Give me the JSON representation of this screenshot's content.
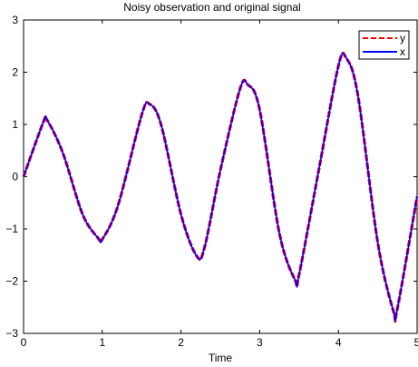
{
  "chart_data": {
    "type": "line",
    "title": "Noisy observation and original signal",
    "xlabel": "Time",
    "ylabel": "",
    "xlim": [
      0,
      5
    ],
    "ylim": [
      -3,
      3
    ],
    "xticks": [
      0,
      1,
      2,
      3,
      4,
      5
    ],
    "yticks": [
      -3,
      -2,
      -1,
      0,
      1,
      2,
      3
    ],
    "xtick_labels": [
      "0",
      "1",
      "2",
      "3",
      "4",
      "5"
    ],
    "ytick_labels": [
      "−3",
      "−2",
      "−1",
      "0",
      "1",
      "2",
      "3"
    ],
    "grid": false,
    "legend_position": "top-right",
    "x": [
      0,
      0.25,
      0.3,
      0.5,
      0.75,
      0.95,
      1.0,
      1.2,
      1.5,
      1.6,
      1.75,
      2.0,
      2.2,
      2.3,
      2.5,
      2.75,
      2.85,
      3.0,
      3.25,
      3.45,
      3.5,
      3.75,
      4.0,
      4.1,
      4.25,
      4.5,
      4.7,
      4.75,
      5.0
    ],
    "series": [
      {
        "name": "y",
        "color": "#ff0000",
        "style": "dashed",
        "values": [
          0.0,
          1.04,
          1.08,
          0.45,
          -0.72,
          -1.18,
          -1.2,
          -0.55,
          1.18,
          1.39,
          0.98,
          -0.72,
          -1.52,
          -1.35,
          0.12,
          1.68,
          1.76,
          1.28,
          -1.08,
          -1.98,
          -1.88,
          0.12,
          2.12,
          2.27,
          1.54,
          -1.26,
          -2.58,
          -2.52,
          -0.38
        ]
      },
      {
        "name": "x",
        "color": "#0000ff",
        "style": "solid",
        "values": [
          0.0,
          1.04,
          1.08,
          0.45,
          -0.72,
          -1.18,
          -1.2,
          -0.55,
          1.18,
          1.39,
          0.98,
          -0.72,
          -1.52,
          -1.35,
          0.12,
          1.68,
          1.76,
          1.28,
          -1.08,
          -1.98,
          -1.88,
          0.12,
          2.12,
          2.27,
          1.54,
          -1.26,
          -2.58,
          -2.52,
          -0.38
        ]
      }
    ]
  }
}
